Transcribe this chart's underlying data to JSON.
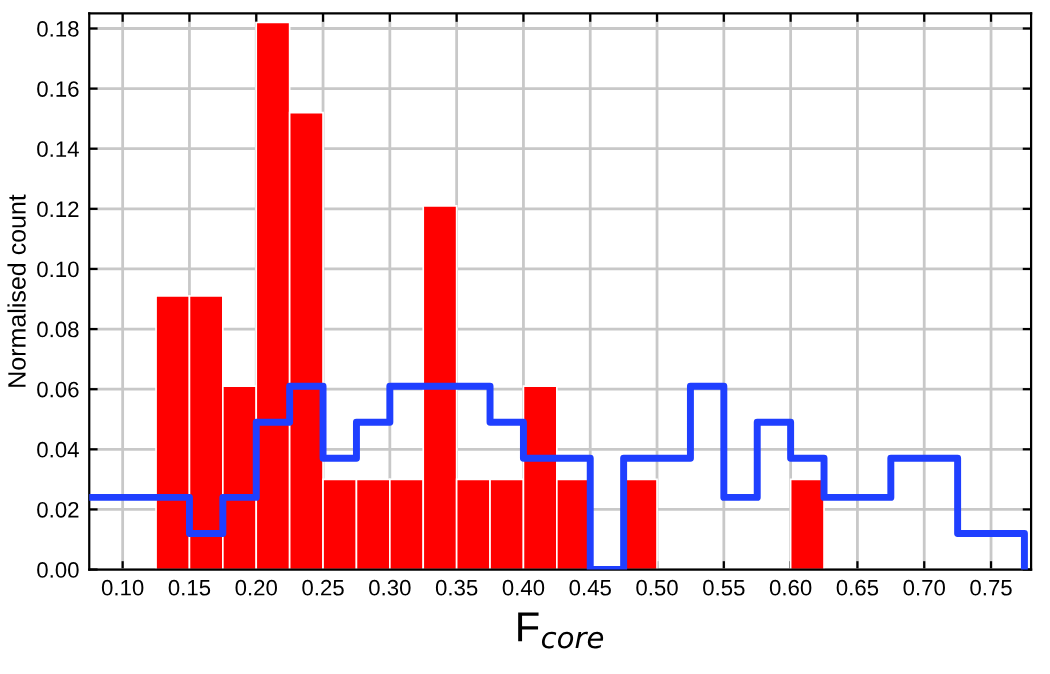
{
  "chart_data": {
    "type": "histogram",
    "xlabel": "F$_{core}$",
    "ylabel": "Normalised count",
    "bins": [
      0.075,
      0.1,
      0.125,
      0.15,
      0.175,
      0.2,
      0.225,
      0.25,
      0.275,
      0.3,
      0.325,
      0.35,
      0.375,
      0.4,
      0.425,
      0.45,
      0.475,
      0.5,
      0.525,
      0.55,
      0.575,
      0.6,
      0.625,
      0.65,
      0.675,
      0.7,
      0.725,
      0.75,
      0.775
    ],
    "series": [
      {
        "color": "#ff0000",
        "values": [
          0,
          0,
          0.091,
          0.091,
          0.061,
          0.182,
          0.152,
          0.03,
          0.03,
          0.03,
          0.121,
          0.03,
          0.03,
          0.061,
          0.03,
          0,
          0.03,
          0,
          0,
          0,
          0,
          0.03,
          0,
          0,
          0,
          0,
          0,
          0
        ]
      },
      {
        "type": "step",
        "color": "#1f3fff",
        "x": [
          0.075,
          0.1,
          0.125,
          0.15,
          0.175,
          0.2,
          0.225,
          0.25,
          0.275,
          0.3,
          0.325,
          0.35,
          0.375,
          0.4,
          0.425,
          0.45,
          0.475,
          0.5,
          0.525,
          0.55,
          0.575,
          0.6,
          0.625,
          0.65,
          0.675,
          0.7,
          0.725,
          0.75,
          0.775
        ],
        "values": [
          0.024,
          0.024,
          0.024,
          0.012,
          0.024,
          0.049,
          0.061,
          0.037,
          0.049,
          0.061,
          0.061,
          0.061,
          0.049,
          0.037,
          0.037,
          0,
          0.037,
          0.037,
          0.061,
          0.024,
          0.049,
          0.037,
          0.024,
          0.024,
          0.037,
          0.037,
          0.012,
          0.012,
          0
        ]
      }
    ],
    "xlim": [
      0.075,
      0.78
    ],
    "ylim": [
      0,
      0.185
    ],
    "xticks": [
      {
        "value": 0.1,
        "label": "0.10"
      },
      {
        "value": 0.15,
        "label": "0.15"
      },
      {
        "value": 0.2,
        "label": "0.20"
      },
      {
        "value": 0.25,
        "label": "0.25"
      },
      {
        "value": 0.3,
        "label": "0.30"
      },
      {
        "value": 0.35,
        "label": "0.35"
      },
      {
        "value": 0.4,
        "label": "0.40"
      },
      {
        "value": 0.45,
        "label": "0.45"
      },
      {
        "value": 0.5,
        "label": "0.50"
      },
      {
        "value": 0.55,
        "label": "0.55"
      },
      {
        "value": 0.6,
        "label": "0.60"
      },
      {
        "value": 0.65,
        "label": "0.65"
      },
      {
        "value": 0.7,
        "label": "0.70"
      },
      {
        "value": 0.75,
        "label": "0.75"
      }
    ],
    "yticks": [
      {
        "value": 0,
        "label": "0.00"
      },
      {
        "value": 0.02,
        "label": "0.02"
      },
      {
        "value": 0.04,
        "label": "0.04"
      },
      {
        "value": 0.06,
        "label": "0.06"
      },
      {
        "value": 0.08,
        "label": "0.08"
      },
      {
        "value": 0.1,
        "label": "0.10"
      },
      {
        "value": 0.12,
        "label": "0.12"
      },
      {
        "value": 0.14,
        "label": "0.14"
      },
      {
        "value": 0.16,
        "label": "0.16"
      },
      {
        "value": 0.18,
        "label": "0.18"
      }
    ],
    "grid": true
  }
}
